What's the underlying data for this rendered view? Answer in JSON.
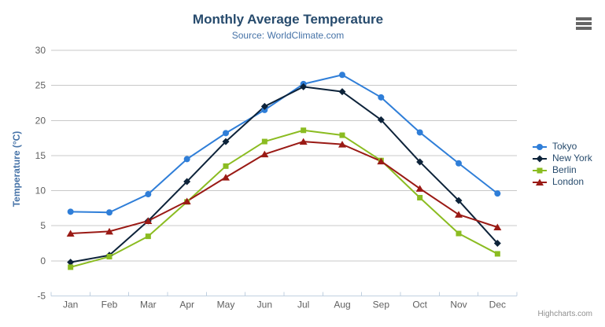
{
  "header": {
    "title": "Monthly Average Temperature",
    "subtitle": "Source: WorldClimate.com"
  },
  "credits": {
    "label": "Highcharts.com"
  },
  "context_menu": {
    "icon": "hamburger-icon"
  },
  "chart_data": {
    "type": "line",
    "title": "Monthly Average Temperature",
    "subtitle": "Source: WorldClimate.com",
    "xlabel": "",
    "ylabel": "Temperature (°C)",
    "categories": [
      "Jan",
      "Feb",
      "Mar",
      "Apr",
      "May",
      "Jun",
      "Jul",
      "Aug",
      "Sep",
      "Oct",
      "Nov",
      "Dec"
    ],
    "series": [
      {
        "name": "Tokyo",
        "color": "#2f7ed8",
        "marker": "circle",
        "values": [
          7.0,
          6.9,
          9.5,
          14.5,
          18.2,
          21.5,
          25.2,
          26.5,
          23.3,
          18.3,
          13.9,
          9.6
        ]
      },
      {
        "name": "New York",
        "color": "#0d233a",
        "marker": "diamond",
        "values": [
          -0.2,
          0.8,
          5.7,
          11.3,
          17.0,
          22.0,
          24.8,
          24.1,
          20.1,
          14.1,
          8.6,
          2.5
        ]
      },
      {
        "name": "Berlin",
        "color": "#8bbc21",
        "marker": "square",
        "values": [
          -0.9,
          0.6,
          3.5,
          8.4,
          13.5,
          17.0,
          18.6,
          17.9,
          14.3,
          9.0,
          3.9,
          1.0
        ]
      },
      {
        "name": "London",
        "color": "#9a1a15",
        "marker": "triangle",
        "values": [
          3.9,
          4.2,
          5.7,
          8.5,
          11.9,
          15.2,
          17.0,
          16.6,
          14.2,
          10.3,
          6.6,
          4.8
        ]
      }
    ],
    "ylim": [
      -5,
      30
    ],
    "ytick_step": 5,
    "ytick_labels": [
      "30",
      "25",
      "20",
      "15",
      "10",
      "5",
      "0",
      "-5"
    ],
    "grid": true,
    "legend_position": "right",
    "styles": {
      "grid_color": "#C8C8C8",
      "axis_line_color": "#C0D0E0",
      "axis_label_color": "#606060",
      "axis_title_color": "#4572A7",
      "title_color": "#274b6d",
      "subtitle_color": "#4572A7",
      "legend_text_color": "#274b6d",
      "credits_color": "#909090",
      "menu_icon_color": "#666666"
    }
  }
}
